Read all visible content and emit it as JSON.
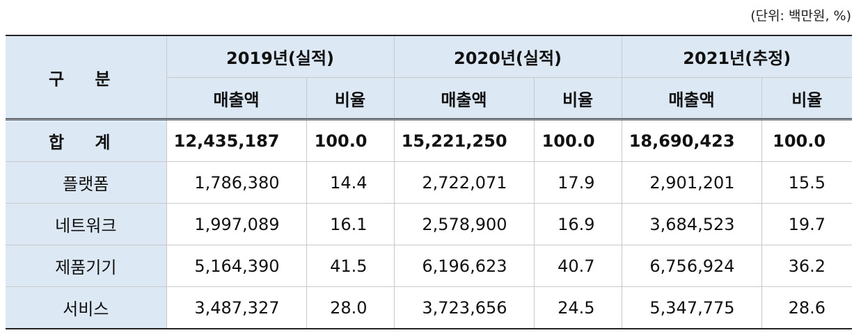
{
  "unit_note": "(단위: 백만원, %)",
  "table": {
    "corner_label": "구 분",
    "years": [
      "2019년(실적)",
      "2020년(실적)",
      "2021년(추정)"
    ],
    "sub_headers": [
      "매출액",
      "비율",
      "매출액",
      "비율",
      "매출액",
      "비율"
    ],
    "rows": [
      {
        "label": "합 계",
        "cells": [
          "12,435,187",
          "100.0",
          "15,221,250",
          "100.0",
          "18,690,423",
          "100.0"
        ]
      },
      {
        "label": "플랫폼",
        "cells": [
          "1,786,380",
          "14.4",
          "2,722,071",
          "17.9",
          "2,901,201",
          "15.5"
        ]
      },
      {
        "label": "네트워크",
        "cells": [
          "1,997,089",
          "16.1",
          "2,578,900",
          "16.9",
          "3,684,523",
          "19.7"
        ]
      },
      {
        "label": "제품기기",
        "cells": [
          "5,164,390",
          "41.5",
          "6,196,623",
          "40.7",
          "6,756,924",
          "36.2"
        ]
      },
      {
        "label": "서비스",
        "cells": [
          "3,487,327",
          "28.0",
          "3,723,656",
          "24.5",
          "5,347,775",
          "28.6"
        ]
      }
    ]
  }
}
